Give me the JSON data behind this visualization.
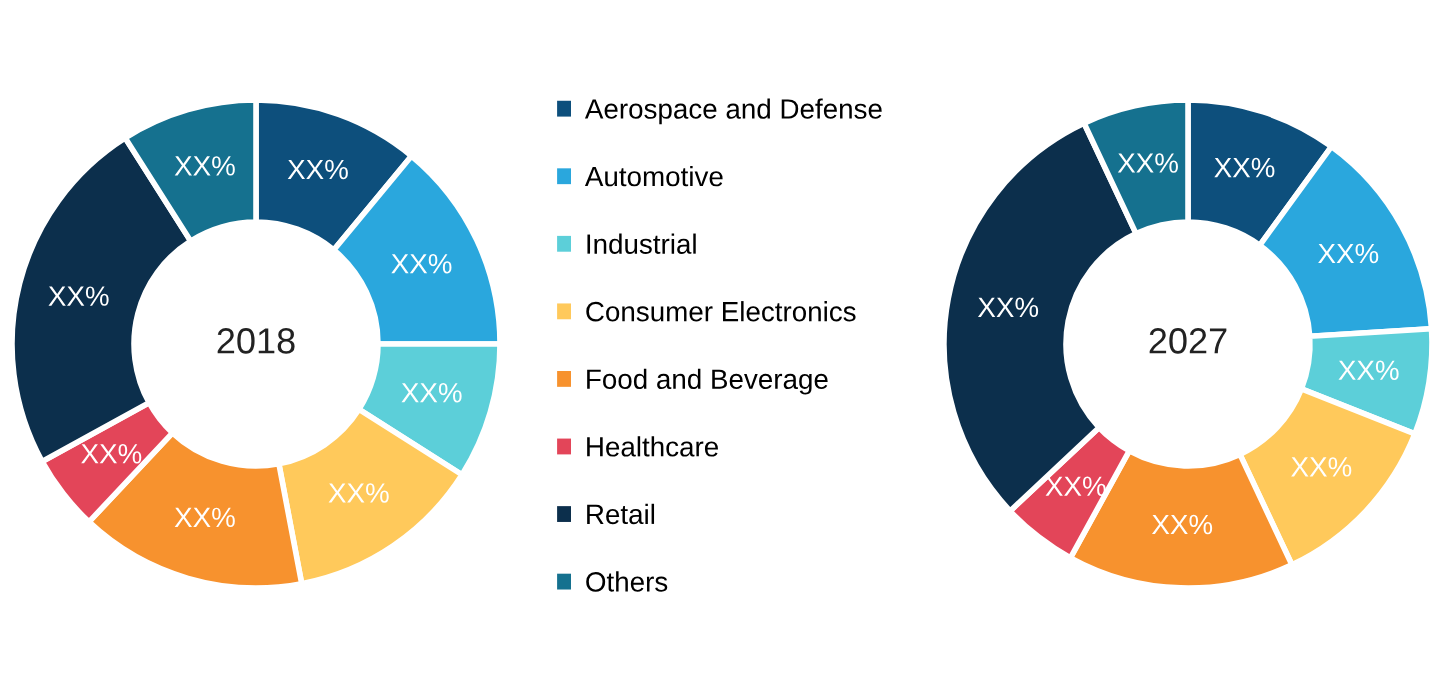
{
  "chart_data": [
    {
      "type": "donut",
      "title": "2018",
      "legend": "right",
      "categories": [
        "Aerospace and Defense",
        "Automotive",
        "Industrial",
        "Consumer Electronics",
        "Food and Beverage",
        "Healthcare",
        "Retail",
        "Others"
      ],
      "values": [
        11,
        14,
        9,
        13,
        15,
        5,
        24,
        9
      ],
      "colors": [
        "#0d4f7c",
        "#2aa7dd",
        "#5ccfd9",
        "#ffc95b",
        "#f7922e",
        "#e34559",
        "#0c2f4c",
        "#15718f"
      ],
      "value_labels": [
        "XX%",
        "XX%",
        "XX%",
        "XX%",
        "XX%",
        "XX%",
        "XX%",
        "XX%"
      ]
    },
    {
      "type": "donut",
      "title": "2027",
      "categories": [
        null,
        null,
        null,
        null,
        null,
        null,
        null,
        null
      ],
      "values": [
        10,
        14,
        7,
        12,
        15,
        5,
        30,
        7
      ],
      "colors": [
        "#0d4f7c",
        "#2aa7dd",
        "#5ccfd9",
        "#ffc95b",
        "#f7922e",
        "#e34559",
        "#0c2f4c",
        "#15718f"
      ],
      "value_labels": [
        "XX%",
        "XX%",
        "XX%",
        "XX%",
        "XX%",
        "XX%",
        "XX%",
        "XX%"
      ]
    }
  ]
}
